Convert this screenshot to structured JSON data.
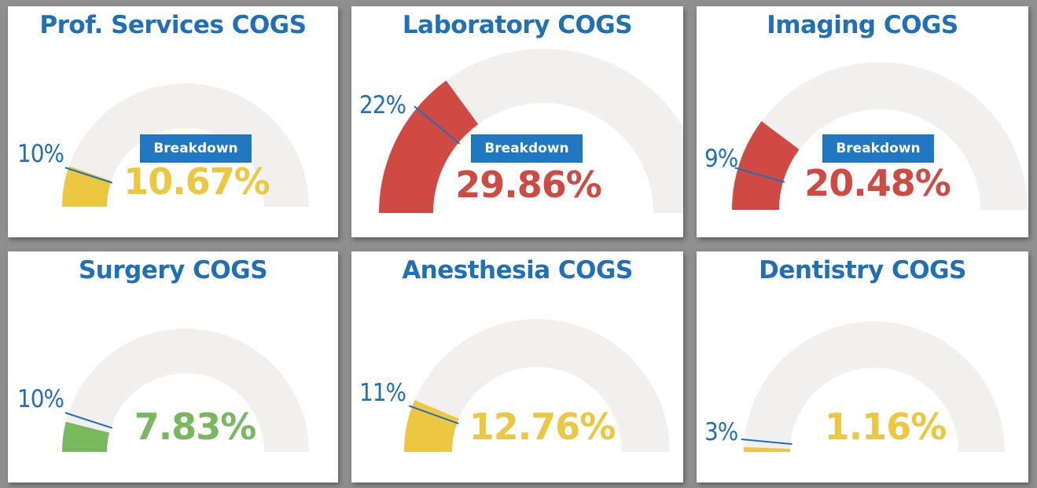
{
  "colors": {
    "title": "#1f6fb9",
    "track": "#f1f0ef",
    "target_line": "#1f6fb9",
    "yellow": "#ecc740",
    "red": "#cf4a42",
    "green": "#78b85f",
    "button": "#1f78c1"
  },
  "chart_data": [
    {
      "type": "gauge",
      "title": "Prof. Services COGS",
      "value": 10.67,
      "value_label": "10.67%",
      "target": 10,
      "target_label": "10%",
      "range": [
        0,
        100
      ],
      "status_color": "yellow",
      "button": "Breakdown"
    },
    {
      "type": "gauge",
      "title": "Laboratory COGS",
      "value": 29.86,
      "value_label": "29.86%",
      "target": 22,
      "target_label": "22%",
      "range": [
        0,
        100
      ],
      "status_color": "red",
      "button": "Breakdown"
    },
    {
      "type": "gauge",
      "title": "Imaging COGS",
      "value": 20.48,
      "value_label": "20.48%",
      "target": 9,
      "target_label": "9%",
      "range": [
        0,
        100
      ],
      "status_color": "red",
      "button": "Breakdown"
    },
    {
      "type": "gauge",
      "title": "Surgery COGS",
      "value": 7.83,
      "value_label": "7.83%",
      "target": 10,
      "target_label": "10%",
      "range": [
        0,
        100
      ],
      "status_color": "green",
      "button": null
    },
    {
      "type": "gauge",
      "title": "Anesthesia COGS",
      "value": 12.76,
      "value_label": "12.76%",
      "target": 11,
      "target_label": "11%",
      "range": [
        0,
        100
      ],
      "status_color": "yellow",
      "button": null
    },
    {
      "type": "gauge",
      "title": "Dentistry COGS",
      "value": 1.16,
      "value_label": "1.16%",
      "target": 3,
      "target_label": "3%",
      "range": [
        0,
        100
      ],
      "status_color": "yellow",
      "button": null
    }
  ]
}
